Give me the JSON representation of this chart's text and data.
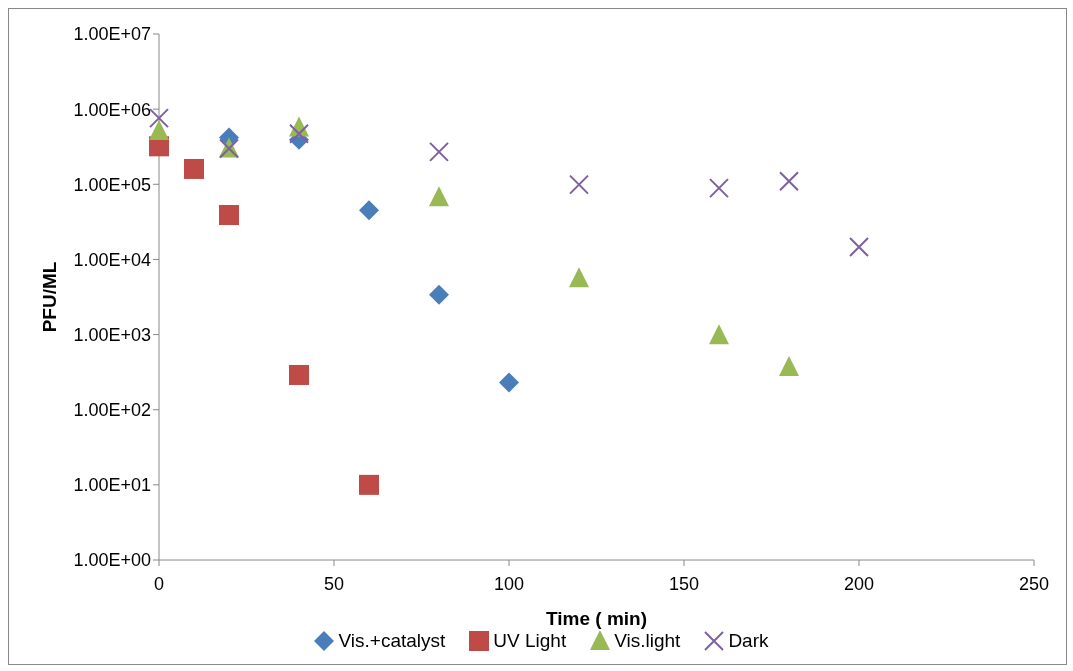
{
  "chart_data": {
    "type": "scatter",
    "xlabel": "Time ( min)",
    "ylabel": "PFU/ML",
    "log": "y",
    "grid": false,
    "legend": "bottom",
    "xlim": [
      0,
      250
    ],
    "xticks": [
      0,
      50,
      100,
      150,
      200,
      250
    ],
    "ylim": [
      1,
      10000000
    ],
    "yticks": [
      {
        "value": 1,
        "label": "1.00E+00"
      },
      {
        "value": 10,
        "label": "1.00E+01"
      },
      {
        "value": 100,
        "label": "1.00E+02"
      },
      {
        "value": 1000,
        "label": "1.00E+03"
      },
      {
        "value": 10000,
        "label": "1.00E+04"
      },
      {
        "value": 100000,
        "label": "1.00E+05"
      },
      {
        "value": 1000000,
        "label": "1.00E+06"
      },
      {
        "value": 10000000,
        "label": "1.00E+07"
      }
    ],
    "series": [
      {
        "name": "Vis.+catalyst",
        "color": "#4a7ebb",
        "marker": "diamond",
        "x": [
          20,
          40,
          60,
          80,
          100
        ],
        "values": [
          420000,
          390000,
          45000,
          3400,
          230
        ]
      },
      {
        "name": "UV Light",
        "color": "#be4b48",
        "marker": "square",
        "x": [
          0,
          10,
          20,
          40,
          60
        ],
        "values": [
          320000,
          160000,
          39000,
          290,
          10
        ]
      },
      {
        "name": "Vis.light",
        "color": "#98b954",
        "marker": "triangle",
        "x": [
          0,
          20,
          40,
          80,
          120,
          160,
          180
        ],
        "values": [
          510000,
          300000,
          570000,
          67000,
          5600,
          980,
          370
        ]
      },
      {
        "name": "Dark",
        "color": "#7d60a0",
        "marker": "cross",
        "x": [
          0,
          20,
          40,
          80,
          120,
          160,
          180,
          200
        ],
        "values": [
          760000,
          300000,
          470000,
          270000,
          99000,
          89000,
          110000,
          14600
        ]
      }
    ]
  }
}
